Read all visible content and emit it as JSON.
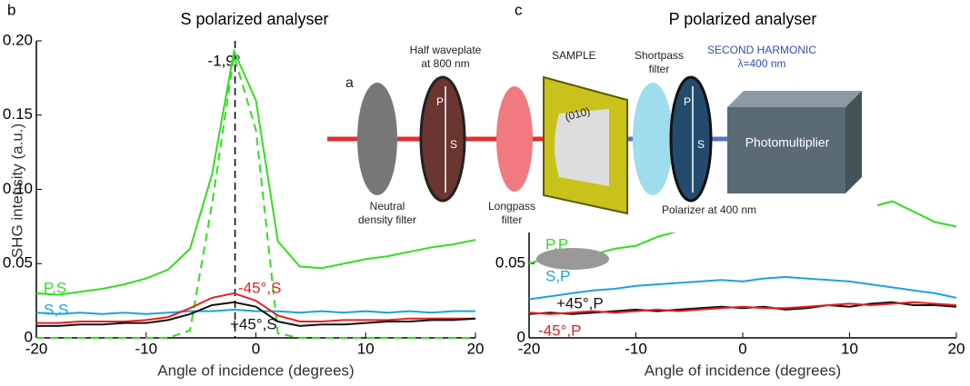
{
  "chart_data": [
    {
      "type": "line",
      "panel": "b",
      "title": "S polarized analyser",
      "xlabel": "Angle of incidence (degrees)",
      "ylabel": "SHG intensity (a.u.)",
      "x": [
        -20,
        -18,
        -16,
        -14,
        -12,
        -10,
        -8,
        -6,
        -4,
        -2,
        0,
        2,
        4,
        6,
        8,
        10,
        12,
        14,
        16,
        18,
        20
      ],
      "xlim": [
        -20,
        20
      ],
      "xticks": [
        -20,
        -10,
        0,
        10,
        20
      ],
      "ylim": [
        0,
        0.2
      ],
      "yticks": [
        0,
        0.05,
        {
          "value": 0.1,
          "label": "0.10"
        },
        0.15,
        {
          "value": 0.2,
          "label": "0.20"
        }
      ],
      "series": [
        {
          "name": "P,S",
          "color": "#33dd22",
          "values": [
            0.03,
            0.029,
            0.031,
            0.033,
            0.036,
            0.04,
            0.046,
            0.06,
            0.11,
            0.193,
            0.16,
            0.065,
            0.048,
            0.047,
            0.05,
            0.053,
            0.055,
            0.058,
            0.061,
            0.063,
            0.066
          ]
        },
        {
          "color": "#33dd22",
          "style": "dashed",
          "values": [
            0,
            0,
            0,
            0,
            0,
            0,
            0,
            0.005,
            0.09,
            0.19,
            0.14,
            0.003,
            0,
            0,
            0,
            0,
            0,
            0,
            0,
            0,
            0
          ]
        },
        {
          "name": "S,S",
          "color": "#1aa3e0",
          "values": [
            0.017,
            0.016,
            0.017,
            0.016,
            0.017,
            0.016,
            0.017,
            0.018,
            0.018,
            0.019,
            0.018,
            0.018,
            0.017,
            0.018,
            0.017,
            0.018,
            0.017,
            0.018,
            0.017,
            0.018,
            0.018
          ]
        },
        {
          "name": "-45°,S",
          "color": "#e52020",
          "values": [
            0.01,
            0.01,
            0.011,
            0.011,
            0.011,
            0.012,
            0.014,
            0.02,
            0.027,
            0.03,
            0.025,
            0.015,
            0.011,
            0.011,
            0.012,
            0.012,
            0.012,
            0.013,
            0.013,
            0.013,
            0.013
          ]
        },
        {
          "name": "+45°,S",
          "color": "#111111",
          "values": [
            0.008,
            0.008,
            0.009,
            0.009,
            0.01,
            0.01,
            0.012,
            0.016,
            0.022,
            0.024,
            0.021,
            0.011,
            0.008,
            0.009,
            0.009,
            0.01,
            0.011,
            0.011,
            0.012,
            0.012,
            0.013
          ]
        }
      ],
      "annotation": {
        "text": "-1,9°",
        "x": -1.9
      }
    },
    {
      "type": "line",
      "panel": "c",
      "title": "P polarized analyser",
      "xlabel": "Angle of incidence (degrees)",
      "x": [
        -20,
        -18,
        -16,
        -14,
        -12,
        -10,
        -8,
        -6,
        -4,
        -2,
        0,
        2,
        4,
        6,
        8,
        10,
        12,
        14,
        16,
        18,
        20
      ],
      "xlim": [
        -20,
        20
      ],
      "xticks": [
        -20,
        -10,
        0,
        10,
        20
      ],
      "ylim": [
        0,
        0.2
      ],
      "yticks": [
        0,
        0.05
      ],
      "series": [
        {
          "name": "P,P",
          "color": "#33dd22",
          "values": [
            0.05,
            0.055,
            0.058,
            0.056,
            0.06,
            0.062,
            0.068,
            0.072,
            0.074,
            0.076,
            0.075,
            0.078,
            0.08,
            0.082,
            0.085,
            0.086,
            0.088,
            0.092,
            0.085,
            0.078,
            0.075
          ]
        },
        {
          "name": "S,P",
          "color": "#1aa3e0",
          "values": [
            0.026,
            0.028,
            0.03,
            0.032,
            0.033,
            0.035,
            0.036,
            0.037,
            0.038,
            0.039,
            0.038,
            0.04,
            0.041,
            0.04,
            0.039,
            0.038,
            0.036,
            0.034,
            0.032,
            0.03,
            0.027
          ]
        },
        {
          "name": "+45°,P",
          "color": "#111111",
          "values": [
            0.016,
            0.017,
            0.016,
            0.017,
            0.018,
            0.019,
            0.018,
            0.019,
            0.02,
            0.021,
            0.02,
            0.021,
            0.019,
            0.02,
            0.022,
            0.021,
            0.023,
            0.024,
            0.022,
            0.022,
            0.021
          ]
        },
        {
          "name": "-45°,P",
          "color": "#e52020",
          "values": [
            0.017,
            0.016,
            0.017,
            0.018,
            0.017,
            0.018,
            0.019,
            0.018,
            0.019,
            0.02,
            0.021,
            0.02,
            0.02,
            0.021,
            0.022,
            0.023,
            0.022,
            0.023,
            0.024,
            0.023,
            0.022
          ]
        }
      ]
    }
  ],
  "diagram": {
    "panel": "a",
    "half_waveplate": [
      "Half waveplate",
      "at 800 nm"
    ],
    "sample": "SAMPLE",
    "plane": "(010)",
    "shortpass": [
      "Shortpass",
      "filter"
    ],
    "harmonic": [
      "SECOND HARMONIC",
      "λ=400 nm"
    ],
    "detector": "Photomultiplier",
    "neutral": [
      "Neutral",
      "density filter"
    ],
    "longpass": [
      "Longpass",
      "filter"
    ],
    "polarizer": "Polarizer at 400 nm",
    "axis_p": "P",
    "axis_s": "S"
  }
}
